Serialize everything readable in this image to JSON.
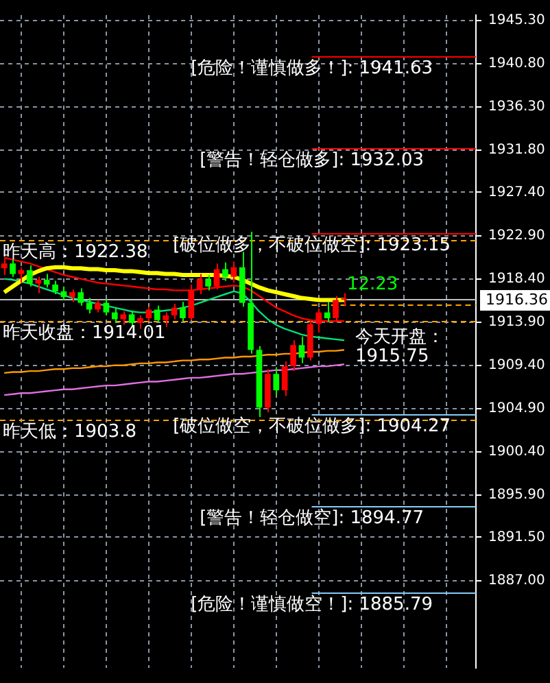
{
  "chart_data": {
    "type": "candlestick",
    "categories": [
      null,
      null,
      null,
      null,
      null,
      null,
      null,
      null,
      null,
      null,
      null,
      null,
      null,
      null,
      null,
      null,
      null,
      null,
      null,
      null,
      null,
      null,
      null,
      null,
      null,
      null,
      null,
      null,
      null,
      null,
      null,
      null,
      null,
      null,
      null,
      null,
      null,
      null,
      null,
      null,
      null,
      null,
      null,
      null,
      null,
      null,
      null,
      null,
      null,
      null,
      null,
      null,
      null,
      null,
      null,
      null
    ],
    "ylim": [
      1877.9,
      1945.85
    ],
    "yticks": [
      {
        "value": 1945.3,
        "label": "1945.30"
      },
      {
        "value": 1940.8,
        "label": "1940.80"
      },
      {
        "value": 1936.3,
        "label": "1936.30"
      },
      {
        "value": 1931.8,
        "label": "1931.80"
      },
      {
        "value": 1927.4,
        "label": "1927.40"
      },
      {
        "value": 1922.9,
        "label": "1922.90"
      },
      {
        "value": 1918.4,
        "label": "1918.40"
      },
      {
        "value": 1913.9,
        "label": "1913.90"
      },
      {
        "value": 1909.4,
        "label": "1909.40"
      },
      {
        "value": 1904.9,
        "label": "1904.90"
      },
      {
        "value": 1900.4,
        "label": "1900.40"
      },
      {
        "value": 1895.9,
        "label": "1895.90"
      },
      {
        "value": 1891.5,
        "label": "1891.50"
      },
      {
        "value": 1887.0,
        "label": "1887.00"
      }
    ],
    "grid": true,
    "legend": false,
    "tick_labels": "y",
    "marker": "none",
    "ohlc": [
      [
        1919.5,
        1920.5,
        1918.8,
        1920.0
      ],
      [
        1920.0,
        1920.4,
        1918.6,
        1918.9
      ],
      [
        1918.9,
        1919.6,
        1918.0,
        1919.3
      ],
      [
        1919.3,
        1919.8,
        1917.6,
        1917.9
      ],
      [
        1917.9,
        1918.6,
        1916.9,
        1918.3
      ],
      [
        1918.3,
        1918.9,
        1917.5,
        1917.8
      ],
      [
        1917.8,
        1918.2,
        1916.8,
        1917.1
      ],
      [
        1917.1,
        1917.6,
        1916.2,
        1916.5
      ],
      [
        1916.5,
        1917.3,
        1916.0,
        1917.0
      ],
      [
        1917.0,
        1917.4,
        1915.6,
        1915.9
      ],
      [
        1915.9,
        1916.4,
        1914.8,
        1915.2
      ],
      [
        1915.2,
        1916.2,
        1914.9,
        1915.9
      ],
      [
        1915.9,
        1916.3,
        1914.6,
        1914.9
      ],
      [
        1914.9,
        1915.3,
        1913.8,
        1914.2
      ],
      [
        1914.2,
        1915.0,
        1913.6,
        1914.7
      ],
      [
        1914.7,
        1915.1,
        1913.5,
        1913.8
      ],
      [
        1913.8,
        1914.6,
        1913.2,
        1914.3
      ],
      [
        1914.3,
        1915.5,
        1914.0,
        1915.2
      ],
      [
        1915.2,
        1915.6,
        1913.9,
        1914.1
      ],
      [
        1914.1,
        1914.9,
        1913.4,
        1914.6
      ],
      [
        1914.6,
        1915.8,
        1914.2,
        1915.4
      ],
      [
        1915.4,
        1916.0,
        1914.0,
        1914.3
      ],
      [
        1914.3,
        1917.8,
        1914.1,
        1917.3
      ],
      [
        1917.3,
        1918.9,
        1916.8,
        1918.4
      ],
      [
        1918.4,
        1918.8,
        1917.2,
        1917.6
      ],
      [
        1917.6,
        1920.0,
        1917.3,
        1919.4
      ],
      [
        1919.4,
        1920.1,
        1918.2,
        1918.6
      ],
      [
        1918.6,
        1920.2,
        1918.0,
        1919.6
      ],
      [
        1919.6,
        1921.2,
        1915.5,
        1915.9
      ],
      [
        1915.9,
        1923.3,
        1910.6,
        1911.0
      ],
      [
        1911.0,
        1911.4,
        1904.0,
        1905.0
      ],
      [
        1905.0,
        1909.0,
        1904.5,
        1908.5
      ],
      [
        1908.5,
        1909.2,
        1906.3,
        1906.8
      ],
      [
        1906.8,
        1909.8,
        1906.2,
        1909.3
      ],
      [
        1909.3,
        1912.0,
        1908.8,
        1911.5
      ],
      [
        1911.5,
        1912.4,
        1909.6,
        1910.2
      ],
      [
        1910.2,
        1914.2,
        1909.9,
        1913.7
      ],
      [
        1913.7,
        1915.3,
        1912.8,
        1914.9
      ],
      [
        1914.9,
        1916.0,
        1913.9,
        1914.3
      ],
      [
        1914.3,
        1916.6,
        1914.0,
        1916.2
      ],
      [
        1916.2,
        1916.9,
        1915.6,
        1916.36
      ],
      null,
      null,
      null,
      null,
      null,
      null,
      null,
      null,
      null,
      null,
      null,
      null,
      null,
      null,
      null
    ],
    "colors": [
      "#ff0000",
      "#00ff00",
      "#ff0000",
      "#00ff00",
      "#ff0000",
      "#00ff00",
      "#00ff00",
      "#00ff00",
      "#ff0000",
      "#00ff00",
      "#00ff00",
      "#ff0000",
      "#00ff00",
      "#00ff00",
      "#ff0000",
      "#00ff00",
      "#ff0000",
      "#ff0000",
      "#00ff00",
      "#ff0000",
      "#ff0000",
      "#00ff00",
      "#ff0000",
      "#ff0000",
      "#00ff00",
      "#ff0000",
      "#00ff00",
      "#ff0000",
      "#00ff00",
      "#00ff00",
      "#00ff00",
      "#ff0000",
      "#00ff00",
      "#ff0000",
      "#ff0000",
      "#00ff00",
      "#ff0000",
      "#ff0000",
      "#00ff00",
      "#ff0000",
      "#ff0000",
      null,
      null,
      null,
      null,
      null,
      null,
      null,
      null,
      null,
      null,
      null,
      null,
      null,
      null,
      null
    ],
    "series": [
      {
        "type": "line",
        "color": "#ffff00",
        "values": [
          1917.0,
          1917.6,
          1918.2,
          1918.8,
          1919.2,
          1919.5,
          1919.6,
          1919.6,
          1919.5,
          1919.5,
          1919.4,
          1919.4,
          1919.3,
          1919.3,
          1919.2,
          1919.2,
          1919.1,
          1919.0,
          1919.0,
          1918.9,
          1918.9,
          1918.8,
          1918.8,
          1918.8,
          1918.8,
          1918.8,
          1918.7,
          1918.6,
          1918.3,
          1917.9,
          1917.5,
          1917.2,
          1917.0,
          1916.8,
          1916.6,
          1916.4,
          1916.3,
          1916.2,
          1916.2,
          1916.2,
          1916.2,
          null,
          null,
          null,
          null,
          null,
          null,
          null,
          null,
          null,
          null,
          null,
          null,
          null,
          null,
          null
        ]
      },
      {
        "type": "line",
        "color": "#ff0000",
        "values": [
          1920.6,
          1920.4,
          1920.2,
          1920.0,
          1919.7,
          1919.4,
          1919.1,
          1918.8,
          1918.6,
          1918.4,
          1918.2,
          1918.0,
          1917.9,
          1917.8,
          1917.7,
          1917.6,
          1917.5,
          1917.4,
          1917.3,
          1917.3,
          1917.2,
          1917.2,
          1917.2,
          1917.3,
          1917.4,
          1917.5,
          1917.6,
          1917.7,
          1917.6,
          1917.2,
          1916.6,
          1916.0,
          1915.4,
          1915.0,
          1914.6,
          1914.3,
          1914.1,
          1914.0,
          1914.0,
          1914.0,
          1914.0,
          null,
          null,
          null,
          null,
          null,
          null,
          null,
          null,
          null,
          null,
          null,
          null,
          null,
          null,
          null
        ]
      },
      {
        "type": "line",
        "color": "#00e07a",
        "values": [
          1918.4,
          1918.3,
          1918.1,
          1917.9,
          1917.6,
          1917.3,
          1917.0,
          1916.7,
          1916.4,
          1916.2,
          1916.0,
          1915.8,
          1915.6,
          1915.4,
          1915.2,
          1915.0,
          1914.9,
          1914.9,
          1915.0,
          1915.1,
          1915.2,
          1915.4,
          1915.6,
          1915.9,
          1916.2,
          1916.5,
          1916.8,
          1917.1,
          1916.9,
          1916.0,
          1915.0,
          1914.2,
          1913.6,
          1913.2,
          1912.9,
          1912.6,
          1912.4,
          1912.3,
          1912.2,
          1912.1,
          1912.0,
          null,
          null,
          null,
          null,
          null,
          null,
          null,
          null,
          null,
          null,
          null,
          null,
          null,
          null,
          null
        ]
      },
      {
        "type": "line",
        "color": "#ff9900",
        "values": [
          1908.6,
          1908.7,
          1908.7,
          1908.8,
          1908.8,
          1908.9,
          1909.0,
          1909.0,
          1909.1,
          1909.1,
          1909.2,
          1909.3,
          1909.3,
          1909.4,
          1909.4,
          1909.5,
          1909.6,
          1909.6,
          1909.7,
          1909.7,
          1909.8,
          1909.9,
          1909.9,
          1910.0,
          1910.0,
          1910.1,
          1910.2,
          1910.2,
          1910.3,
          1910.3,
          1910.4,
          1910.5,
          1910.5,
          1910.6,
          1910.6,
          1910.7,
          1910.8,
          1910.8,
          1910.9,
          1910.9,
          1911.0,
          null,
          null,
          null,
          null,
          null,
          null,
          null,
          null,
          null,
          null,
          null,
          null,
          null,
          null,
          null
        ]
      },
      {
        "type": "line",
        "color": "#e070e0",
        "values": [
          1906.3,
          1906.4,
          1906.5,
          1906.5,
          1906.6,
          1906.7,
          1906.8,
          1906.9,
          1906.9,
          1907.0,
          1907.1,
          1907.2,
          1907.3,
          1907.3,
          1907.4,
          1907.5,
          1907.6,
          1907.7,
          1907.7,
          1907.8,
          1907.9,
          1908.0,
          1908.1,
          1908.1,
          1908.2,
          1908.3,
          1908.4,
          1908.5,
          1908.5,
          1908.6,
          1908.7,
          1908.8,
          1908.9,
          1908.9,
          1909.0,
          1909.1,
          1909.2,
          1909.3,
          1909.3,
          1909.4,
          1909.5,
          null,
          null,
          null,
          null,
          null,
          null,
          null,
          null,
          null,
          null,
          null,
          null,
          null,
          null,
          null
        ]
      }
    ],
    "ref_lines": [
      {
        "axis": "y",
        "value": 1916.36,
        "label": "1916.36",
        "color": "#c0c0c0",
        "line_style": "solid"
      },
      {
        "axis": "y",
        "value": 1941.63,
        "label": "[危险！谨慎做多！]: 1941.63",
        "color": "#ff0000",
        "line_style": "solid"
      },
      {
        "axis": "y",
        "value": 1932.03,
        "label": "[警告！轻仓做多]: 1932.03",
        "color": "#ff0000",
        "line_style": "solid"
      },
      {
        "axis": "y",
        "value": 1923.15,
        "label": "[破位做多，不破位做空]: 1923.15",
        "color": "#ff0000",
        "line_style": "solid"
      },
      {
        "axis": "y",
        "value": 1904.27,
        "label": "[破位做空，不破位做多]: 1904.27",
        "color": "#87cefa",
        "line_style": "solid"
      },
      {
        "axis": "y",
        "value": 1894.77,
        "label": "[警告！轻仓做空]: 1894.77",
        "color": "#87cefa",
        "line_style": "solid"
      },
      {
        "axis": "y",
        "value": 1885.79,
        "label": "[危险！谨慎做空！]: 1885.79",
        "color": "#87cefa",
        "line_style": "solid"
      },
      {
        "axis": "y",
        "value": 1922.38,
        "label": "昨天高：1922.38",
        "color": "#ffa500",
        "line_style": "dashed"
      },
      {
        "axis": "y",
        "value": 1914.01,
        "label": "昨天收盘：1914.01",
        "color": "#ffa500",
        "line_style": "dashed"
      },
      {
        "axis": "y",
        "value": 1903.8,
        "label": "昨天低：1903.8",
        "color": "#ffa500",
        "line_style": "dashed"
      },
      {
        "axis": "y",
        "value": 1915.75,
        "label": "今天开盘：1915.75",
        "color": "#ffa500",
        "line_style": "dashed"
      }
    ],
    "annotations": [
      "12.23"
    ]
  }
}
